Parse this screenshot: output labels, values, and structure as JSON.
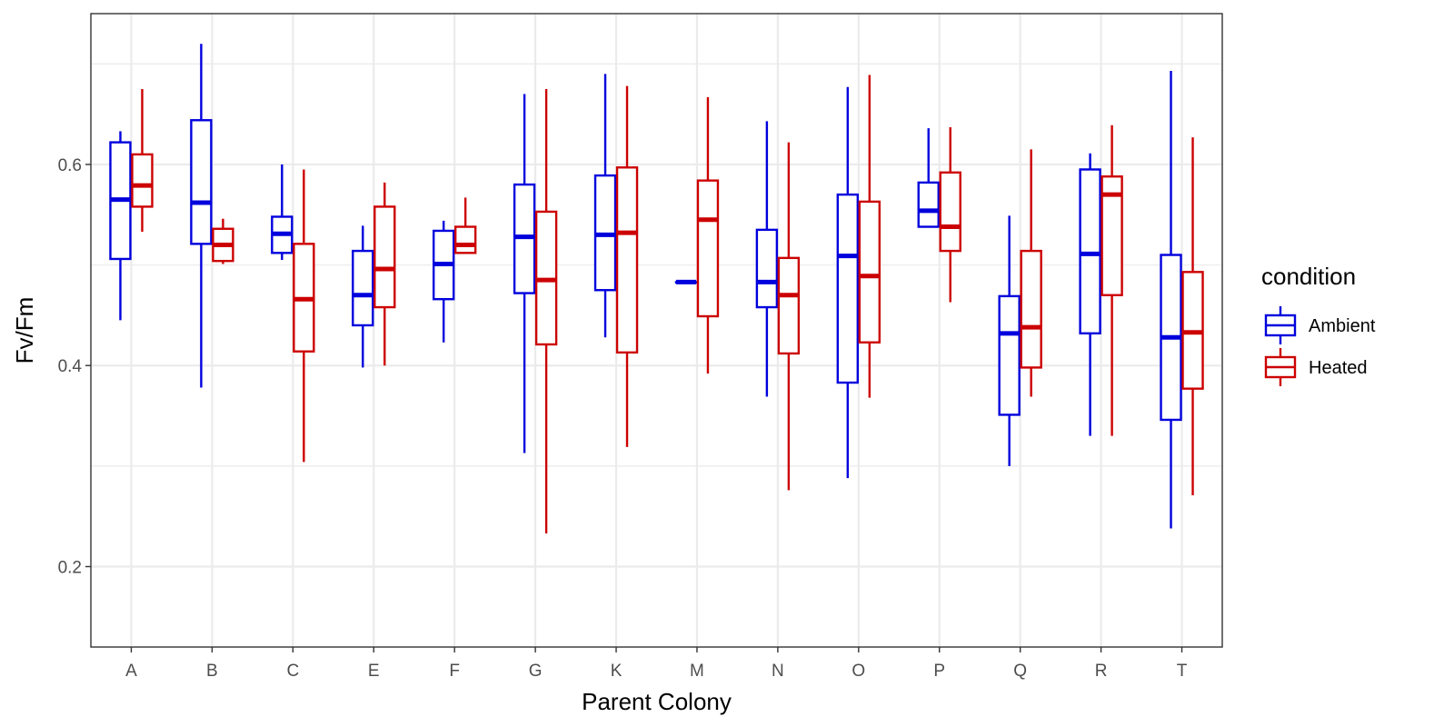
{
  "chart_data": {
    "type": "boxplot",
    "xlabel": "Parent Colony",
    "ylabel": "Fv/Fm",
    "ylim": [
      0.12,
      0.75
    ],
    "yticks": [
      0.2,
      0.4,
      0.6
    ],
    "ytick_labels": [
      "0.2",
      "0.4",
      "0.6"
    ],
    "grid": true,
    "legend_position": "right",
    "legend_title": "condition",
    "categories": [
      "A",
      "B",
      "C",
      "E",
      "F",
      "G",
      "K",
      "M",
      "N",
      "O",
      "P",
      "Q",
      "R",
      "T"
    ],
    "series": [
      {
        "name": "Ambient",
        "color": "#0000dd",
        "boxes": [
          {
            "min": 0.445,
            "q1": 0.506,
            "median": 0.565,
            "q3": 0.622,
            "max": 0.633
          },
          {
            "min": 0.378,
            "q1": 0.521,
            "median": 0.562,
            "q3": 0.644,
            "max": 0.72
          },
          {
            "min": 0.505,
            "q1": 0.512,
            "median": 0.531,
            "q3": 0.548,
            "max": 0.6
          },
          {
            "min": 0.398,
            "q1": 0.44,
            "median": 0.47,
            "q3": 0.514,
            "max": 0.539
          },
          {
            "min": 0.423,
            "q1": 0.466,
            "median": 0.501,
            "q3": 0.534,
            "max": 0.544
          },
          {
            "min": 0.313,
            "q1": 0.472,
            "median": 0.528,
            "q3": 0.58,
            "max": 0.67
          },
          {
            "min": 0.428,
            "q1": 0.475,
            "median": 0.53,
            "q3": 0.589,
            "max": 0.69
          },
          {
            "min": 0.483,
            "q1": 0.483,
            "median": 0.483,
            "q3": 0.483,
            "max": 0.483
          },
          {
            "min": 0.369,
            "q1": 0.458,
            "median": 0.483,
            "q3": 0.535,
            "max": 0.643
          },
          {
            "min": 0.288,
            "q1": 0.383,
            "median": 0.509,
            "q3": 0.57,
            "max": 0.677
          },
          {
            "min": 0.538,
            "q1": 0.538,
            "median": 0.554,
            "q3": 0.582,
            "max": 0.636
          },
          {
            "min": 0.3,
            "q1": 0.351,
            "median": 0.432,
            "q3": 0.469,
            "max": 0.549
          },
          {
            "min": 0.33,
            "q1": 0.432,
            "median": 0.511,
            "q3": 0.595,
            "max": 0.611
          },
          {
            "min": 0.238,
            "q1": 0.346,
            "median": 0.428,
            "q3": 0.51,
            "max": 0.693
          }
        ]
      },
      {
        "name": "Heated",
        "color": "#cc0000",
        "boxes": [
          {
            "min": 0.533,
            "q1": 0.558,
            "median": 0.579,
            "q3": 0.61,
            "max": 0.675
          },
          {
            "min": 0.501,
            "q1": 0.504,
            "median": 0.52,
            "q3": 0.536,
            "max": 0.546
          },
          {
            "min": 0.304,
            "q1": 0.414,
            "median": 0.466,
            "q3": 0.521,
            "max": 0.595
          },
          {
            "min": 0.4,
            "q1": 0.458,
            "median": 0.496,
            "q3": 0.558,
            "max": 0.582
          },
          {
            "min": 0.512,
            "q1": 0.512,
            "median": 0.52,
            "q3": 0.538,
            "max": 0.567
          },
          {
            "min": 0.233,
            "q1": 0.421,
            "median": 0.485,
            "q3": 0.553,
            "max": 0.675
          },
          {
            "min": 0.319,
            "q1": 0.413,
            "median": 0.532,
            "q3": 0.597,
            "max": 0.678
          },
          {
            "min": 0.392,
            "q1": 0.449,
            "median": 0.545,
            "q3": 0.584,
            "max": 0.667
          },
          {
            "min": 0.276,
            "q1": 0.412,
            "median": 0.47,
            "q3": 0.507,
            "max": 0.622
          },
          {
            "min": 0.368,
            "q1": 0.423,
            "median": 0.489,
            "q3": 0.563,
            "max": 0.689
          },
          {
            "min": 0.463,
            "q1": 0.514,
            "median": 0.538,
            "q3": 0.592,
            "max": 0.637
          },
          {
            "min": 0.369,
            "q1": 0.398,
            "median": 0.438,
            "q3": 0.514,
            "max": 0.615
          },
          {
            "min": 0.33,
            "q1": 0.47,
            "median": 0.57,
            "q3": 0.588,
            "max": 0.639
          },
          {
            "min": 0.271,
            "q1": 0.377,
            "median": 0.433,
            "q3": 0.493,
            "max": 0.627
          }
        ]
      }
    ]
  }
}
